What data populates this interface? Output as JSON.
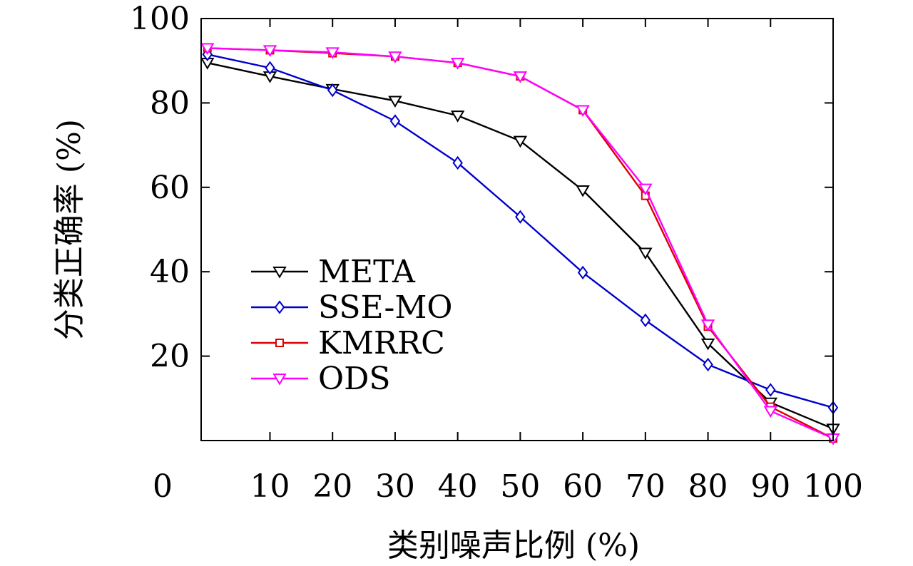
{
  "chart_data": {
    "type": "line",
    "xlabel": "类别噪声比例 (%)",
    "ylabel": "分类正确率 (%)",
    "xlim": [
      0,
      100
    ],
    "ylim": [
      0,
      100
    ],
    "x_ticks": [
      "0",
      "10",
      "20",
      "30",
      "40",
      "50",
      "60",
      "70",
      "80",
      "90",
      "100"
    ],
    "y_ticks": [
      "20",
      "40",
      "60",
      "80",
      "100"
    ],
    "grid": false,
    "legend_position": "center-left",
    "x": [
      0,
      10,
      20,
      30,
      40,
      50,
      60,
      70,
      80,
      90,
      100
    ],
    "series": [
      {
        "name": "META",
        "color": "#000000",
        "marker": "triangle-down",
        "values": [
          89.5,
          86.3,
          83.3,
          80.5,
          77.0,
          71.0,
          59.3,
          44.5,
          23.0,
          9.0,
          2.8
        ]
      },
      {
        "name": "SSE-MO",
        "color": "#0000cc",
        "marker": "diamond",
        "values": [
          91.5,
          88.3,
          83.0,
          75.7,
          65.8,
          53.0,
          39.8,
          28.5,
          18.0,
          12.0,
          7.8
        ]
      },
      {
        "name": "KMRRC",
        "color": "#dd0000",
        "marker": "square",
        "values": [
          93.0,
          92.5,
          91.8,
          91.0,
          89.5,
          86.3,
          78.3,
          58.0,
          27.0,
          8.0,
          0.5
        ]
      },
      {
        "name": "ODS",
        "color": "#ff00ff",
        "marker": "triangle-down",
        "values": [
          93.0,
          92.5,
          92.0,
          91.0,
          89.5,
          86.3,
          78.3,
          59.7,
          27.5,
          7.0,
          0.5
        ]
      }
    ]
  }
}
